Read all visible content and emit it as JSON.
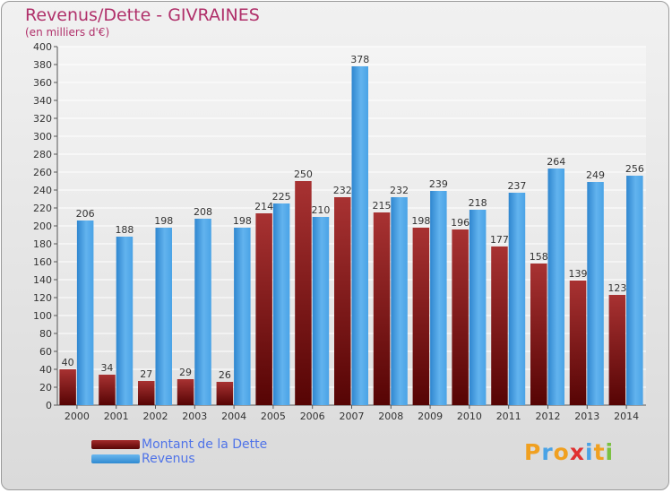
{
  "chart_data": {
    "type": "bar",
    "title": "Revenus/Dette - GIVRAINES",
    "subtitle": "(en milliers d'€)",
    "categories": [
      "2000",
      "2001",
      "2002",
      "2003",
      "2004",
      "2005",
      "2006",
      "2007",
      "2008",
      "2009",
      "2010",
      "2011",
      "2012",
      "2013",
      "2014"
    ],
    "series": [
      {
        "name": "Montant de la Dette",
        "color": "#7a1414",
        "values": [
          40,
          34,
          27,
          29,
          26,
          214,
          250,
          232,
          215,
          198,
          196,
          177,
          158,
          139,
          123
        ]
      },
      {
        "name": "Revenus",
        "color": "#4aa3e6",
        "values": [
          206,
          188,
          198,
          208,
          198,
          225,
          210,
          378,
          232,
          239,
          218,
          237,
          264,
          249,
          256
        ]
      }
    ],
    "ylim": [
      0,
      400
    ],
    "ytick_step": 20,
    "grid": true,
    "legend_position": "bottom-left",
    "xlabel": "",
    "ylabel": ""
  },
  "logo": {
    "text": "Proxiti",
    "letters": [
      "P",
      "r",
      "o",
      "x",
      "i",
      "t",
      "i"
    ],
    "colors": [
      "#f0a020",
      "#4aa3e6",
      "#f0a020",
      "#e03030",
      "#4aa3e6",
      "#f0a020",
      "#7ac040"
    ]
  }
}
